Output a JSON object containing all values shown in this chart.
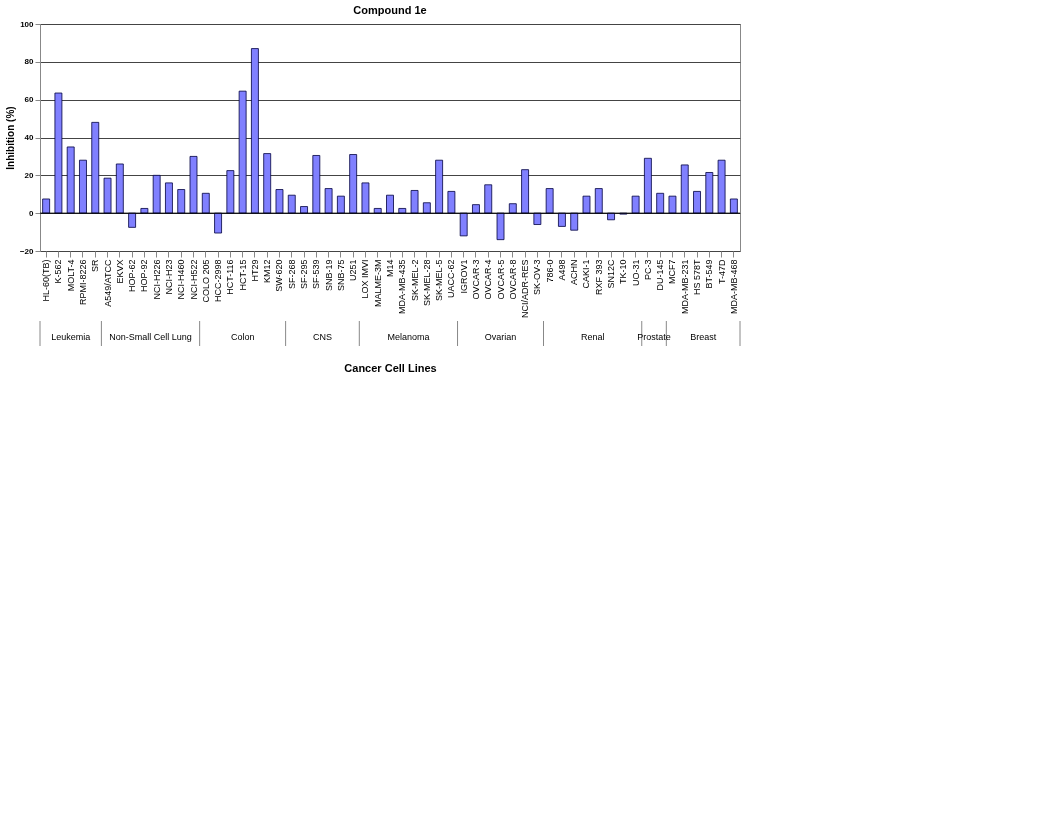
{
  "chart_data": {
    "type": "bar",
    "title": "Compound 1e",
    "xlabel": "Cancer Cell Lines",
    "ylabel": "Inhibition (%)",
    "categories": [
      "HL-60(TB)",
      "K-562",
      "MOLT-4",
      "RPMI-8226",
      "SR",
      "A549/ATCC",
      "EKVX",
      "HOP-62",
      "HOP-92",
      "NCI-H226",
      "NCI-H23",
      "NCI-H460",
      "NCI-H522",
      "COLO 205",
      "HCC-2998",
      "HCT-116",
      "HCT-15",
      "HT29",
      "KM12",
      "SW-620",
      "SF-268",
      "SF-295",
      "SF-539",
      "SNB-19",
      "SNB-75",
      "U251",
      "LOX IMVI",
      "MALME-3M",
      "M14",
      "MDA-MB-435",
      "SK-MEL-2",
      "SK-MEL-28",
      "SK-MEL-5",
      "UACC-62",
      "IGROV1",
      "OVCAR-3",
      "OVCAR-4",
      "OVCAR-5",
      "OVCAR-8",
      "NCI/ADR-RES",
      "SK-OV-3",
      "786-0",
      "A498",
      "ACHN",
      "CAKI-1",
      "RXF 393",
      "SN12C",
      "TK-10",
      "UO-31",
      "PC-3",
      "DU-145",
      "MCF7",
      "MDA-MB-231",
      "HS 578T",
      "BT-549",
      "T-47D",
      "MDA-MB-468"
    ],
    "values": [
      7.5,
      63.5,
      35,
      28,
      48,
      18.5,
      26,
      -7.5,
      2.5,
      20,
      16,
      12.5,
      30,
      10.5,
      -10.5,
      22.5,
      64.5,
      87,
      31.5,
      12.5,
      9.5,
      3.5,
      30.5,
      13,
      9,
      31,
      16,
      2.5,
      9.5,
      2.5,
      12,
      5.5,
      28,
      11.5,
      -12,
      4.5,
      15,
      -14,
      5,
      23,
      -6,
      13,
      -7,
      -9,
      9,
      13,
      -3.5,
      -0.5,
      9,
      29,
      10.5,
      9,
      25.5,
      11.5,
      21.5,
      28,
      7.5
    ],
    "color": "#8080ff",
    "annotations": [
      "Leukemia",
      "Non-Small Cell Lung",
      "Colon",
      "CNS",
      "Melanoma",
      "Ovarian",
      "Renal",
      "Prostate",
      "Breast"
    ],
    "ylim": [
      -20,
      100
    ],
    "yticks": [
      -20,
      0,
      20,
      40,
      60,
      80,
      100
    ],
    "grid": "y",
    "legend": false
  }
}
